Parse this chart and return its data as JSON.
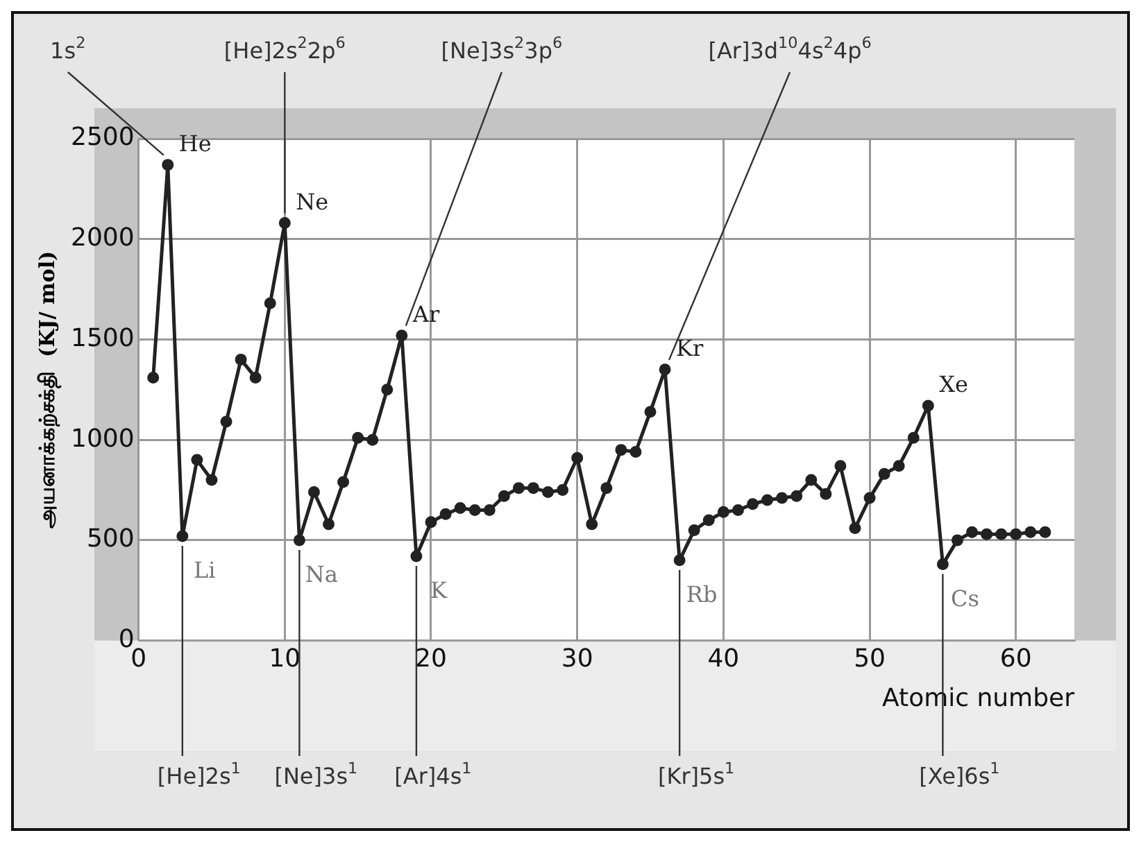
{
  "chart_data": {
    "type": "line",
    "xlabel": "Atomic number",
    "ylabel": "அயனாக்கற்சக்தி  (KJ/ mol)",
    "x": [
      1,
      2,
      3,
      4,
      5,
      6,
      7,
      8,
      9,
      10,
      11,
      12,
      13,
      14,
      15,
      16,
      17,
      18,
      19,
      20,
      21,
      22,
      23,
      24,
      25,
      26,
      27,
      28,
      29,
      30,
      31,
      32,
      33,
      34,
      35,
      36,
      37,
      38,
      39,
      40,
      41,
      42,
      43,
      44,
      45,
      46,
      47,
      48,
      49,
      50,
      51,
      52,
      53,
      54,
      55,
      56,
      57,
      58,
      59,
      60,
      61,
      62
    ],
    "series": [
      {
        "color": "#222222",
        "values": [
          1310,
          2370,
          520,
          900,
          800,
          1090,
          1400,
          1310,
          1680,
          2080,
          500,
          740,
          580,
          790,
          1010,
          1000,
          1250,
          1520,
          420,
          590,
          630,
          660,
          650,
          650,
          720,
          760,
          760,
          740,
          750,
          910,
          580,
          760,
          950,
          940,
          1140,
          1350,
          400,
          550,
          600,
          640,
          650,
          680,
          700,
          710,
          720,
          800,
          730,
          870,
          560,
          710,
          830,
          870,
          1010,
          1170,
          380,
          500,
          540,
          530,
          530,
          530,
          540,
          540
        ]
      }
    ],
    "xlim": [
      0,
      64
    ],
    "xticks": [
      0,
      10,
      20,
      30,
      40,
      50,
      60
    ],
    "ylim": [
      0,
      2500
    ],
    "yticks": [
      0,
      500,
      1000,
      1500,
      2000,
      2500
    ],
    "grid": true,
    "legend": false,
    "marker": "circle",
    "line_style": "solid",
    "annotations": [
      {
        "text": "He",
        "x": 2,
        "y": 2370
      },
      {
        "text": "1s$^{2}$",
        "x": 2,
        "y": 2370
      },
      {
        "text": "Ne",
        "x": 10,
        "y": 2080
      },
      {
        "text": "[He]2s$^{2}$2p$^{6}$",
        "x": 10,
        "y": 2080
      },
      {
        "text": "Ar",
        "x": 18,
        "y": 1520
      },
      {
        "text": "[Ne]3s$^{2}$3p$^{6}$",
        "x": 18,
        "y": 1520
      },
      {
        "text": "Kr",
        "x": 36,
        "y": 1350
      },
      {
        "text": "[Ar]3d$^{10}$4s$^{2}$4p$^{6}$",
        "x": 36,
        "y": 1350
      },
      {
        "text": "Xe",
        "x": 54,
        "y": 1170
      },
      {
        "text": "Li",
        "x": 3,
        "y": 520
      },
      {
        "text": "[He]2s$^{1}$",
        "x": 3,
        "y": 520
      },
      {
        "text": "Na",
        "x": 11,
        "y": 500
      },
      {
        "text": "[Ne]3s$^{1}$",
        "x": 11,
        "y": 500
      },
      {
        "text": "K",
        "x": 19,
        "y": 420
      },
      {
        "text": "[Ar]4s$^{1}$",
        "x": 19,
        "y": 420
      },
      {
        "text": "Rb",
        "x": 37,
        "y": 400
      },
      {
        "text": "[Kr]5s$^{1}$",
        "x": 37,
        "y": 400
      },
      {
        "text": "Cs",
        "x": 55,
        "y": 380
      },
      {
        "text": "[Xe]6s$^{1}$",
        "x": 55,
        "y": 380
      }
    ]
  }
}
